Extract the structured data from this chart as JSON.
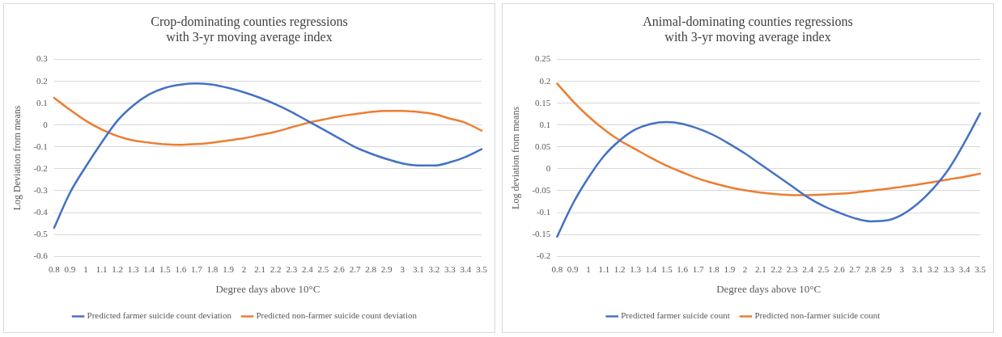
{
  "chart_data": [
    {
      "type": "line",
      "title": "Crop-dominating counties regressions with 3-yr moving average index",
      "xlabel": "Degree days above 10°C",
      "ylabel": "Log Deviation from means",
      "categories": [
        "0.8",
        "0.9",
        "1",
        "1.1",
        "1.2",
        "1.3",
        "1.4",
        "1.5",
        "1.6",
        "1.7",
        "1.8",
        "1.9",
        "2",
        "2.1",
        "2.2",
        "2.3",
        "2.4",
        "2.5",
        "2.6",
        "2.7",
        "2.8",
        "2.9",
        "3",
        "3.1",
        "3.2",
        "3.3",
        "3.4",
        "3.5"
      ],
      "series": [
        {
          "name": "Predicted farmer suicide count deviation",
          "color": "#4472c4",
          "values": [
            -0.47,
            -0.31,
            -0.19,
            -0.08,
            0.02,
            0.09,
            0.14,
            0.17,
            0.185,
            0.19,
            0.185,
            0.17,
            0.15,
            0.125,
            0.095,
            0.06,
            0.02,
            -0.02,
            -0.06,
            -0.1,
            -0.13,
            -0.155,
            -0.175,
            -0.185,
            -0.185,
            -0.17,
            -0.145,
            -0.11
          ]
        },
        {
          "name": "Predicted non-farmer suicide count deviation",
          "color": "#ed7d31",
          "values": [
            0.125,
            0.07,
            0.02,
            -0.02,
            -0.05,
            -0.07,
            -0.08,
            -0.088,
            -0.09,
            -0.087,
            -0.08,
            -0.07,
            -0.06,
            -0.045,
            -0.03,
            -0.01,
            0.01,
            0.025,
            0.04,
            0.05,
            0.06,
            0.065,
            0.065,
            0.06,
            0.05,
            0.03,
            0.01,
            -0.025
          ]
        }
      ],
      "ylim": [
        -0.6,
        0.3
      ],
      "yticks": [
        -0.6,
        -0.5,
        -0.4,
        -0.3,
        -0.2,
        -0.1,
        0,
        0.1,
        0.2,
        0.3
      ],
      "grid": "y",
      "legend": "bottom",
      "marker": "none",
      "line_style": "solid"
    },
    {
      "type": "line",
      "title": "Animal-dominating counties regressions with 3-yr moving average index",
      "xlabel": "Degree days above 10°C",
      "ylabel": "Log deviation from means",
      "categories": [
        "0.8",
        "0.9",
        "1",
        "1.1",
        "1.2",
        "1.3",
        "1.4",
        "1.5",
        "1.6",
        "1.7",
        "1.8",
        "1.9",
        "2",
        "2.1",
        "2.2",
        "2.3",
        "2.4",
        "2.5",
        "2.6",
        "2.7",
        "2.8",
        "2.9",
        "3",
        "3.1",
        "3.2",
        "3.3",
        "3.4",
        "3.5"
      ],
      "series": [
        {
          "name": "Predicted farmer suicide count",
          "color": "#4472c4",
          "values": [
            -0.155,
            -0.08,
            -0.02,
            0.03,
            0.065,
            0.09,
            0.103,
            0.107,
            0.103,
            0.092,
            0.077,
            0.057,
            0.035,
            0.01,
            -0.015,
            -0.04,
            -0.065,
            -0.085,
            -0.1,
            -0.113,
            -0.12,
            -0.118,
            -0.105,
            -0.08,
            -0.045,
            0,
            0.06,
            0.127
          ]
        },
        {
          "name": "Predicted non-farmer suicide count",
          "color": "#ed7d31",
          "values": [
            0.195,
            0.155,
            0.12,
            0.09,
            0.065,
            0.045,
            0.025,
            0.007,
            -0.008,
            -0.022,
            -0.033,
            -0.042,
            -0.049,
            -0.054,
            -0.058,
            -0.06,
            -0.06,
            -0.059,
            -0.057,
            -0.054,
            -0.05,
            -0.046,
            -0.041,
            -0.036,
            -0.03,
            -0.024,
            -0.018,
            -0.011
          ]
        }
      ],
      "ylim": [
        -0.2,
        0.25
      ],
      "yticks": [
        -0.2,
        -0.15,
        -0.1,
        -0.05,
        0,
        0.05,
        0.1,
        0.15,
        0.2,
        0.25
      ],
      "grid": "y",
      "legend": "bottom",
      "marker": "none",
      "line_style": "solid"
    }
  ]
}
